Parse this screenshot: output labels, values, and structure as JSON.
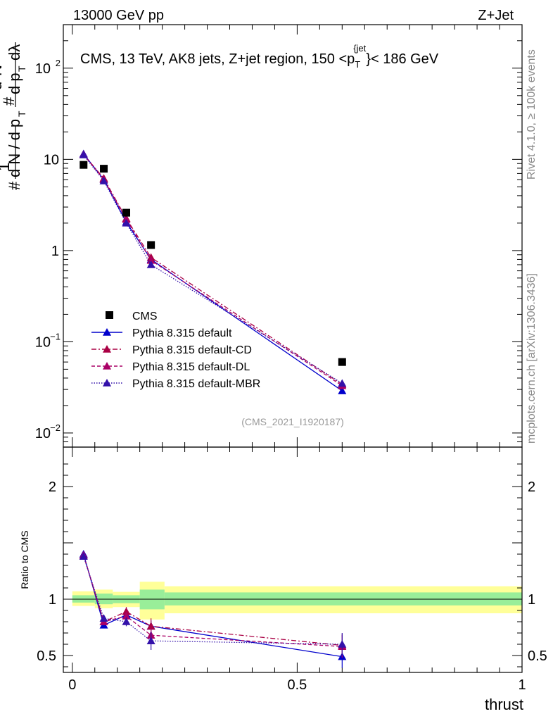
{
  "header": {
    "left": "13000 GeV pp",
    "right": "Z+Jet"
  },
  "side_text": {
    "rivet": "Rivet 4.1.0, ≥ 100k events",
    "mcplots": "mcplots.cern.ch [arXiv:1306.3436]"
  },
  "chart_data": [
    {
      "type": "scatter",
      "panel": "main",
      "title": "CMS, 13 TeV, AK8 jets, Z+jet region, 150 <p_T^{jet}< 186 GeV",
      "title_main": "CMS, 13 TeV, AK8 jets, Z+jet region, 150 <p",
      "title_sub": "T",
      "title_sup": "{jet",
      "title_close": "}< 186 GeV",
      "analysis_id": "(CMS_2021_I1920187)",
      "ylabel": "1/N dN/dp_T d²N/dp_T dλ",
      "yscale": "log",
      "ylim": [
        0.007,
        300
      ],
      "xlim": [
        -0.02,
        1.0
      ],
      "yticks": [
        {
          "value": 0.01,
          "base": "10",
          "exp": "−2"
        },
        {
          "value": 0.1,
          "base": "10",
          "exp": "−1"
        },
        {
          "value": 1,
          "base": "1",
          "exp": ""
        },
        {
          "value": 10,
          "base": "10",
          "exp": ""
        },
        {
          "value": 100,
          "base": "10",
          "exp": "2"
        }
      ],
      "data": {
        "name": "CMS",
        "x": [
          0.025,
          0.07,
          0.12,
          0.175,
          0.6
        ],
        "y": [
          8.7,
          7.9,
          2.6,
          1.15,
          0.06
        ]
      },
      "series": [
        {
          "name": "Pythia 8.315 default",
          "color": "#0000cc",
          "dash": "",
          "x": [
            0.025,
            0.07,
            0.12,
            0.175,
            0.6
          ],
          "y": [
            11.5,
            6.0,
            2.05,
            0.8,
            0.029
          ]
        },
        {
          "name": "Pythia 8.315 default-CD",
          "color": "#aa0044",
          "dash": "7,3,2,3",
          "x": [
            0.025,
            0.07,
            0.12,
            0.175,
            0.6
          ],
          "y": [
            11.3,
            6.2,
            2.25,
            0.84,
            0.034
          ]
        },
        {
          "name": "Pythia 8.315 default-DL",
          "color": "#aa0066",
          "dash": "5,3",
          "x": [
            0.025,
            0.07,
            0.12,
            0.175,
            0.6
          ],
          "y": [
            11.3,
            6.0,
            2.2,
            0.78,
            0.033
          ]
        },
        {
          "name": "Pythia 8.315 default-MBR",
          "color": "#3311aa",
          "dash": "1.5,2",
          "x": [
            0.025,
            0.07,
            0.12,
            0.175,
            0.6
          ],
          "y": [
            11.2,
            5.8,
            2.0,
            0.7,
            0.035
          ]
        }
      ],
      "legend": {
        "data_label": "CMS",
        "labels": [
          "Pythia 8.315 default",
          "Pythia 8.315 default-CD",
          "Pythia 8.315 default-DL",
          "Pythia 8.315 default-MBR"
        ]
      }
    },
    {
      "type": "scatter",
      "panel": "ratio",
      "ylabel": "Ratio to CMS",
      "xlabel": "thrust",
      "ylim": [
        0.35,
        2.35
      ],
      "xlim": [
        -0.02,
        1.0
      ],
      "yticks": [
        {
          "value": 0.5,
          "label": "0.5"
        },
        {
          "value": 1,
          "label": "1"
        },
        {
          "value": 2,
          "label": "2"
        }
      ],
      "xticks": [
        {
          "value": 0,
          "label": "0"
        },
        {
          "value": 0.5,
          "label": "0.5"
        },
        {
          "value": 1,
          "label": "1"
        }
      ],
      "bands": [
        {
          "x0": 0.0,
          "x1": 0.05,
          "yellow": [
            0.94,
            1.07
          ],
          "green": [
            0.97,
            1.035
          ]
        },
        {
          "x0": 0.05,
          "x1": 0.09,
          "yellow": [
            0.92,
            1.085
          ],
          "green": [
            0.955,
            1.05
          ]
        },
        {
          "x0": 0.09,
          "x1": 0.15,
          "yellow": [
            0.93,
            1.065
          ],
          "green": [
            0.965,
            1.035
          ]
        },
        {
          "x0": 0.15,
          "x1": 0.205,
          "yellow": [
            0.82,
            1.155
          ],
          "green": [
            0.91,
            1.085
          ]
        },
        {
          "x0": 0.205,
          "x1": 1.0,
          "yellow": [
            0.875,
            1.115
          ],
          "green": [
            0.945,
            1.06
          ]
        }
      ],
      "series": [
        {
          "name": "Pythia 8.315 default",
          "x": [
            0.025,
            0.07,
            0.12,
            0.175,
            0.6
          ],
          "y": [
            1.4,
            0.77,
            0.86,
            0.76,
            0.49
          ],
          "err": [
            0.02,
            0.025,
            0.03,
            0.05,
            0.1
          ]
        },
        {
          "name": "Pythia 8.315 default-CD",
          "x": [
            0.025,
            0.07,
            0.12,
            0.175,
            0.6
          ],
          "y": [
            1.39,
            0.8,
            0.89,
            0.76,
            0.59
          ],
          "err": [
            0.02,
            0.03,
            0.04,
            0.07,
            0.1
          ]
        },
        {
          "name": "Pythia 8.315 default-DL",
          "x": [
            0.025,
            0.07,
            0.12,
            0.175,
            0.6
          ],
          "y": [
            1.39,
            0.8,
            0.85,
            0.68,
            0.58
          ],
          "err": [
            0.02,
            0.03,
            0.04,
            0.07,
            0.1
          ]
        },
        {
          "name": "Pythia 8.315 default-MBR",
          "x": [
            0.025,
            0.07,
            0.12,
            0.175,
            0.6
          ],
          "y": [
            1.38,
            0.83,
            0.8,
            0.63,
            0.6
          ],
          "err": [
            0.02,
            0.03,
            0.04,
            0.08,
            0.1
          ]
        }
      ]
    }
  ]
}
